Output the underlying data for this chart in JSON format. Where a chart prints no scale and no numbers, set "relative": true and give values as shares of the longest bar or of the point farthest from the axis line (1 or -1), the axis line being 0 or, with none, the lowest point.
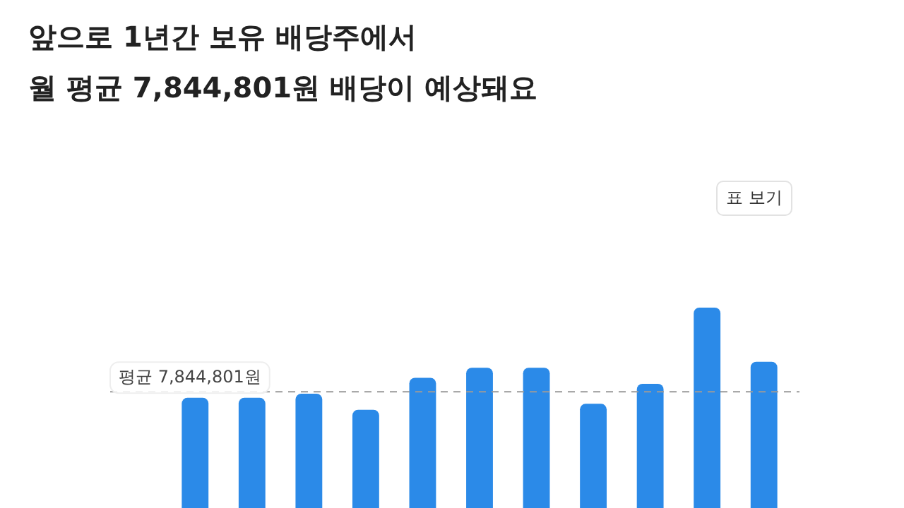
{
  "chart_data": {
    "type": "bar",
    "title": "앞으로 1년간 보유 배당주에서\n월 평균 7,844,801원 배당이 예상돼요",
    "categories": [
      null,
      null,
      null,
      null,
      null,
      null,
      null,
      null,
      null,
      null,
      null
    ],
    "values": [
      0.55,
      0.55,
      0.57,
      0.49,
      0.65,
      0.7,
      0.7,
      0.52,
      0.62,
      1,
      0.73
    ],
    "color": "#2b8ae8",
    "relative": true,
    "legend": false,
    "ref_lines": [
      {
        "axis": "y",
        "value": 0.58,
        "label": "평균 7,844,801원",
        "color": "#9a9a9a",
        "line_style": "dashed"
      }
    ],
    "annotations": [
      "표 보기"
    ]
  }
}
